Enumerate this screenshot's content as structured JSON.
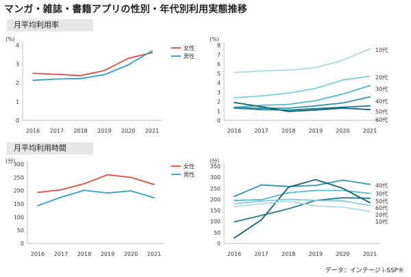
{
  "title": "マンガ・雑誌・書籍アプリの性別・年代別利用実態推移",
  "sections": {
    "avg_rate": "月平均利用率",
    "avg_time": "月平均利用時間"
  },
  "source": "データ：インテージ i-SSP®",
  "chart_data": [
    {
      "id": "gender-rate",
      "type": "line",
      "unit": "(%)",
      "categories": [
        "2016",
        "2017",
        "2018",
        "2019",
        "2020",
        "2021"
      ],
      "ylim": [
        0,
        4
      ],
      "yticks": [
        0,
        1,
        2,
        3,
        4
      ],
      "grid": false,
      "legend": "right",
      "series": [
        {
          "name": "女性",
          "color": "#e8463c",
          "values": [
            2.5,
            2.45,
            2.38,
            2.65,
            3.3,
            3.6
          ]
        },
        {
          "name": "男性",
          "color": "#2aa1bd",
          "values": [
            2.13,
            2.2,
            2.22,
            2.43,
            2.95,
            3.7
          ]
        }
      ]
    },
    {
      "id": "age-rate",
      "type": "line",
      "unit": "(%)",
      "categories": [
        "2016",
        "2017",
        "2018",
        "2019",
        "2020",
        "2021"
      ],
      "ylim": [
        0,
        8
      ],
      "yticks": [
        0,
        1,
        2,
        3,
        4,
        5,
        6,
        7,
        8
      ],
      "grid": false,
      "legend": "line-end labels",
      "series": [
        {
          "name": "10代",
          "color": "#a8dbe6",
          "values": [
            5.1,
            5.25,
            5.35,
            5.6,
            6.4,
            7.6
          ]
        },
        {
          "name": "20代",
          "color": "#7fcbdb",
          "values": [
            2.4,
            2.6,
            2.9,
            3.4,
            4.3,
            4.7
          ]
        },
        {
          "name": "30代",
          "color": "#4fb9cc",
          "values": [
            1.4,
            1.6,
            1.7,
            2.1,
            2.8,
            3.7
          ]
        },
        {
          "name": "40代",
          "color": "#2a97ad",
          "values": [
            1.4,
            1.3,
            1.3,
            1.55,
            1.85,
            2.5
          ]
        },
        {
          "name": "50代",
          "color": "#1b7c8f",
          "values": [
            1.3,
            1.15,
            1.1,
            1.25,
            1.4,
            1.55
          ]
        },
        {
          "name": "60代",
          "color": "#0f5f70",
          "values": [
            1.9,
            1.45,
            0.95,
            1.1,
            1.3,
            1.15
          ]
        }
      ]
    },
    {
      "id": "gender-time",
      "type": "line",
      "unit": "(分)",
      "categories": [
        "2016",
        "2017",
        "2018",
        "2019",
        "2020",
        "2021"
      ],
      "ylim": [
        0,
        300
      ],
      "yticks": [
        0,
        50,
        100,
        150,
        200,
        250,
        300
      ],
      "grid": false,
      "legend": "right",
      "series": [
        {
          "name": "女性",
          "color": "#e8463c",
          "values": [
            193,
            203,
            226,
            260,
            250,
            223
          ]
        },
        {
          "name": "男性",
          "color": "#2aa1bd",
          "values": [
            143,
            175,
            201,
            191,
            199,
            173
          ]
        }
      ]
    },
    {
      "id": "age-time",
      "type": "line",
      "unit": "(分)",
      "categories": [
        "2016",
        "2017",
        "2018",
        "2019",
        "2020",
        "2021"
      ],
      "ylim": [
        0,
        350
      ],
      "yticks": [
        0,
        50,
        100,
        150,
        200,
        250,
        300,
        350
      ],
      "grid": false,
      "legend": "line-end labels",
      "series": [
        {
          "name": "40代",
          "color": "#2a97ad",
          "values": [
            213,
            265,
            258,
            263,
            287,
            268
          ]
        },
        {
          "name": "30代",
          "color": "#4fb9cc",
          "values": [
            195,
            198,
            230,
            240,
            240,
            227
          ]
        },
        {
          "name": "50代",
          "color": "#1b7c8f",
          "values": [
            98,
            127,
            157,
            195,
            207,
            205
          ]
        },
        {
          "name": "60代",
          "color": "#0f5f70",
          "values": [
            25,
            107,
            255,
            289,
            250,
            185
          ]
        },
        {
          "name": "20代",
          "color": "#7fcbdb",
          "values": [
            180,
            192,
            200,
            195,
            193,
            172
          ]
        },
        {
          "name": "10代",
          "color": "#a8dbe6",
          "values": [
            167,
            180,
            192,
            170,
            165,
            145
          ]
        }
      ]
    }
  ]
}
